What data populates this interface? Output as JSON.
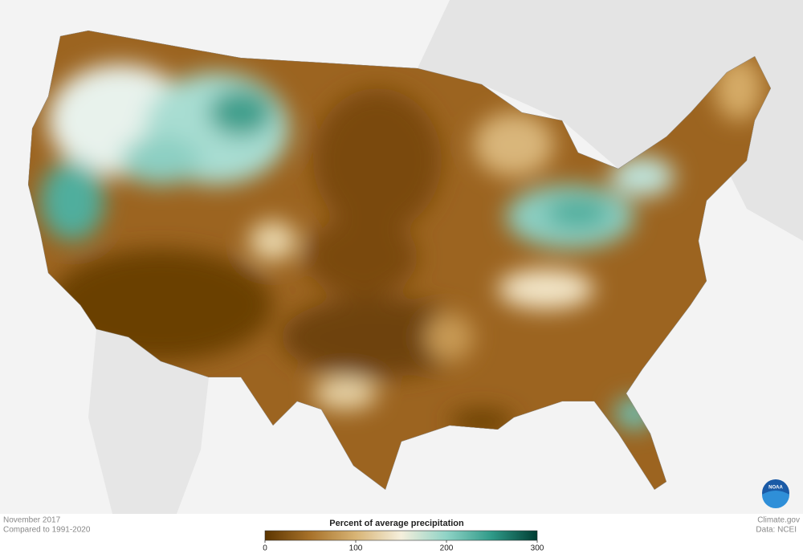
{
  "map": {
    "caption": {
      "date": "November 2017",
      "baseline": "Compared to 1991-2020"
    },
    "legend": {
      "title": "Percent of average precipitation",
      "range": [
        0,
        300
      ],
      "ticks": [
        0,
        100,
        200,
        300
      ],
      "colors": [
        "#5c3500",
        "#a8722a",
        "#d8b475",
        "#f5efdc",
        "#8fd3c6",
        "#2f9a88",
        "#003d33"
      ]
    },
    "credits": {
      "site": "Climate.gov",
      "source": "Data: NCEI"
    },
    "logo": "NOAA"
  }
}
